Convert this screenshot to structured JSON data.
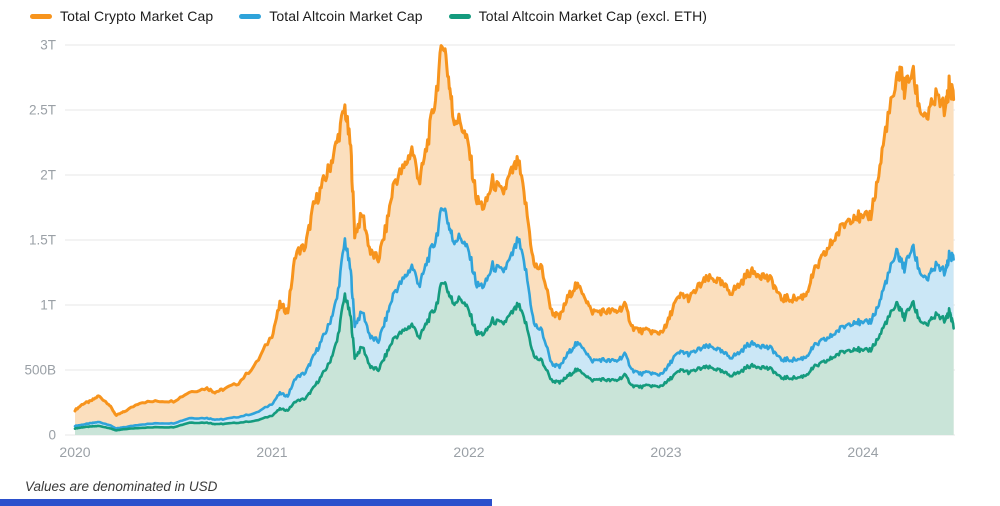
{
  "footer": {
    "note": "Values are denominated in USD"
  },
  "page": {
    "background": "#ffffff",
    "bottom_bar_color": "#2B50CC"
  },
  "chart_data": {
    "type": "area",
    "title": "",
    "unit": "USD (T = trillions, B = billions)",
    "grid": true,
    "legend_position": "top",
    "ylim": [
      0,
      3
    ],
    "y_ticks": [
      {
        "value": 0,
        "label": "0"
      },
      {
        "value": 0.5,
        "label": "500B"
      },
      {
        "value": 1,
        "label": "1T"
      },
      {
        "value": 1.5,
        "label": "1.5T"
      },
      {
        "value": 2,
        "label": "2T"
      },
      {
        "value": 2.5,
        "label": "2.5T"
      },
      {
        "value": 3,
        "label": "3T"
      }
    ],
    "x_label_ticks": [
      2020,
      2021,
      2022,
      2023,
      2024
    ],
    "x": [
      2020.0,
      2020.04,
      2020.08,
      2020.12,
      2020.17,
      2020.21,
      2020.25,
      2020.33,
      2020.42,
      2020.5,
      2020.58,
      2020.67,
      2020.71,
      2020.75,
      2020.83,
      2020.92,
      2021.0,
      2021.04,
      2021.08,
      2021.12,
      2021.17,
      2021.21,
      2021.25,
      2021.29,
      2021.33,
      2021.37,
      2021.4,
      2021.42,
      2021.46,
      2021.5,
      2021.54,
      2021.58,
      2021.62,
      2021.67,
      2021.71,
      2021.75,
      2021.79,
      2021.83,
      2021.87,
      2021.9,
      2021.92,
      2021.96,
      2022.0,
      2022.04,
      2022.08,
      2022.12,
      2022.17,
      2022.21,
      2022.25,
      2022.29,
      2022.33,
      2022.37,
      2022.42,
      2022.46,
      2022.5,
      2022.54,
      2022.58,
      2022.62,
      2022.67,
      2022.71,
      2022.75,
      2022.79,
      2022.83,
      2022.87,
      2022.92,
      2022.96,
      2023.0,
      2023.04,
      2023.08,
      2023.12,
      2023.17,
      2023.21,
      2023.25,
      2023.29,
      2023.33,
      2023.37,
      2023.42,
      2023.46,
      2023.5,
      2023.54,
      2023.58,
      2023.62,
      2023.67,
      2023.71,
      2023.75,
      2023.79,
      2023.83,
      2023.87,
      2023.92,
      2023.96,
      2024.0,
      2024.04,
      2024.08,
      2024.12,
      2024.17,
      2024.19,
      2024.21,
      2024.25,
      2024.29,
      2024.33,
      2024.37,
      2024.42,
      2024.44,
      2024.46
    ],
    "series": [
      {
        "name": "Total Crypto Market Cap",
        "slug": "total-crypto",
        "color": "#F7941D",
        "fill": "#FBDFBE",
        "values": [
          0.19,
          0.24,
          0.26,
          0.3,
          0.24,
          0.15,
          0.18,
          0.25,
          0.26,
          0.26,
          0.33,
          0.36,
          0.33,
          0.35,
          0.4,
          0.55,
          0.77,
          1.0,
          0.95,
          1.4,
          1.45,
          1.75,
          1.9,
          2.05,
          2.25,
          2.52,
          2.2,
          1.55,
          1.7,
          1.4,
          1.35,
          1.6,
          1.95,
          2.05,
          2.2,
          1.95,
          2.25,
          2.6,
          3.05,
          2.7,
          2.45,
          2.4,
          2.2,
          1.8,
          1.75,
          1.95,
          1.85,
          2.0,
          2.1,
          1.75,
          1.3,
          1.28,
          0.95,
          0.9,
          1.05,
          1.15,
          1.1,
          0.95,
          0.95,
          0.95,
          0.95,
          1.0,
          0.83,
          0.8,
          0.8,
          0.78,
          0.83,
          1.0,
          1.08,
          1.05,
          1.15,
          1.2,
          1.2,
          1.15,
          1.1,
          1.15,
          1.25,
          1.25,
          1.22,
          1.18,
          1.05,
          1.05,
          1.05,
          1.08,
          1.25,
          1.35,
          1.45,
          1.55,
          1.65,
          1.7,
          1.65,
          1.7,
          2.0,
          2.4,
          2.7,
          2.82,
          2.65,
          2.8,
          2.5,
          2.45,
          2.6,
          2.5,
          2.72,
          2.58
        ]
      },
      {
        "name": "Total Altcoin Market Cap",
        "slug": "total-altcoin",
        "color": "#2FA3DA",
        "fill": "#CBE7F6",
        "values": [
          0.07,
          0.08,
          0.09,
          0.1,
          0.08,
          0.05,
          0.06,
          0.08,
          0.09,
          0.09,
          0.13,
          0.13,
          0.12,
          0.12,
          0.14,
          0.17,
          0.24,
          0.32,
          0.3,
          0.44,
          0.48,
          0.6,
          0.72,
          0.85,
          1.05,
          1.5,
          1.25,
          0.85,
          0.95,
          0.75,
          0.72,
          0.9,
          1.1,
          1.2,
          1.3,
          1.15,
          1.35,
          1.5,
          1.78,
          1.6,
          1.5,
          1.52,
          1.4,
          1.15,
          1.15,
          1.3,
          1.25,
          1.35,
          1.5,
          1.25,
          0.85,
          0.8,
          0.55,
          0.52,
          0.62,
          0.7,
          0.68,
          0.57,
          0.58,
          0.57,
          0.57,
          0.62,
          0.5,
          0.47,
          0.48,
          0.46,
          0.5,
          0.6,
          0.64,
          0.62,
          0.66,
          0.68,
          0.67,
          0.63,
          0.6,
          0.63,
          0.7,
          0.7,
          0.68,
          0.66,
          0.58,
          0.58,
          0.58,
          0.6,
          0.68,
          0.72,
          0.75,
          0.8,
          0.85,
          0.88,
          0.85,
          0.88,
          1.0,
          1.2,
          1.4,
          1.35,
          1.28,
          1.45,
          1.25,
          1.2,
          1.3,
          1.25,
          1.4,
          1.35
        ]
      },
      {
        "name": "Total Altcoin Market Cap (excl. ETH)",
        "slug": "total-altcoin-excl-eth",
        "color": "#149B7E",
        "fill": "#C9E4D8",
        "values": [
          0.05,
          0.06,
          0.065,
          0.07,
          0.055,
          0.035,
          0.045,
          0.055,
          0.06,
          0.06,
          0.095,
          0.095,
          0.085,
          0.085,
          0.095,
          0.11,
          0.15,
          0.2,
          0.19,
          0.26,
          0.28,
          0.36,
          0.45,
          0.55,
          0.72,
          1.08,
          0.9,
          0.6,
          0.68,
          0.52,
          0.5,
          0.62,
          0.75,
          0.8,
          0.85,
          0.75,
          0.88,
          0.98,
          1.2,
          1.08,
          1.02,
          1.05,
          0.95,
          0.78,
          0.78,
          0.88,
          0.85,
          0.92,
          1.0,
          0.85,
          0.6,
          0.57,
          0.42,
          0.4,
          0.45,
          0.5,
          0.48,
          0.42,
          0.43,
          0.42,
          0.42,
          0.46,
          0.38,
          0.37,
          0.38,
          0.37,
          0.4,
          0.46,
          0.5,
          0.48,
          0.51,
          0.52,
          0.51,
          0.48,
          0.46,
          0.48,
          0.53,
          0.53,
          0.52,
          0.5,
          0.44,
          0.44,
          0.44,
          0.46,
          0.52,
          0.55,
          0.58,
          0.62,
          0.65,
          0.67,
          0.64,
          0.66,
          0.75,
          0.88,
          1.0,
          0.97,
          0.9,
          1.02,
          0.88,
          0.85,
          0.92,
          0.88,
          0.96,
          0.82
        ]
      }
    ]
  }
}
